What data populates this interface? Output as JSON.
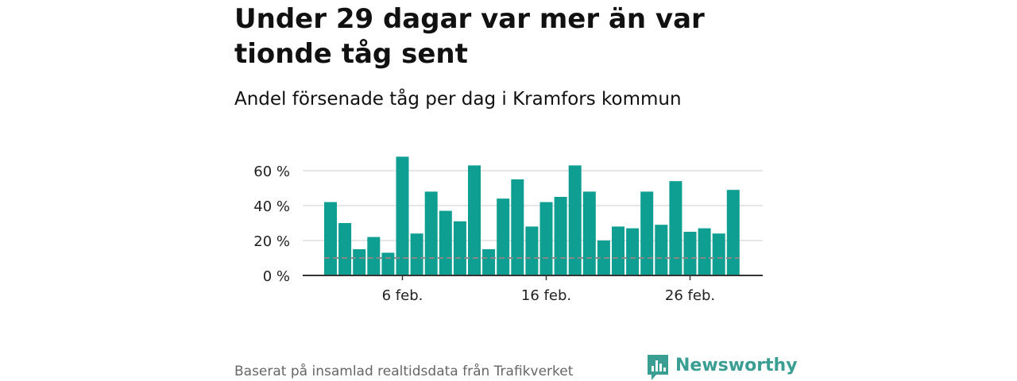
{
  "title": "Under 29 dagar var mer än var tionde tåg sent",
  "subtitle": "Andel försenade tåg per dag i Kramfors kommun",
  "source": "Baserat på insamlad realtidsdata från Trafikverket",
  "brand": {
    "name": "Newsworthy",
    "logo_icon": "newsworthy-speech-bubble-bar-chart-icon",
    "color": "#3a9e93"
  },
  "colors": {
    "bar": "#0f9e92",
    "threshold_line": "#888888",
    "grid": "#dddddd",
    "axis": "#333333"
  },
  "chart_data": {
    "type": "bar",
    "x_start": "1 feb.",
    "categories": [
      "1 feb.",
      "2 feb.",
      "3 feb.",
      "4 feb.",
      "5 feb.",
      "6 feb.",
      "7 feb.",
      "8 feb.",
      "9 feb.",
      "10 feb.",
      "11 feb.",
      "12 feb.",
      "13 feb.",
      "14 feb.",
      "15 feb.",
      "16 feb.",
      "17 feb.",
      "18 feb.",
      "19 feb.",
      "20 feb.",
      "21 feb.",
      "22 feb.",
      "23 feb.",
      "24 feb.",
      "25 feb.",
      "26 feb.",
      "27 feb.",
      "28 feb.",
      "29 feb."
    ],
    "values": [
      42,
      30,
      15,
      22,
      13,
      68,
      24,
      48,
      37,
      31,
      63,
      15,
      44,
      55,
      28,
      42,
      45,
      63,
      48,
      20,
      28,
      27,
      48,
      29,
      54,
      25,
      27,
      24,
      49
    ],
    "unit": "%",
    "ylim": [
      0,
      70
    ],
    "yticks": [
      0,
      20,
      40,
      60
    ],
    "ytick_labels": [
      "0 %",
      "20 %",
      "40 %",
      "60 %"
    ],
    "xticks": [
      {
        "index": 5,
        "label": "6 feb."
      },
      {
        "index": 15,
        "label": "16 feb."
      },
      {
        "index": 25,
        "label": "26 feb."
      }
    ],
    "threshold": 10,
    "grid": true,
    "xlabel": "",
    "ylabel": ""
  }
}
